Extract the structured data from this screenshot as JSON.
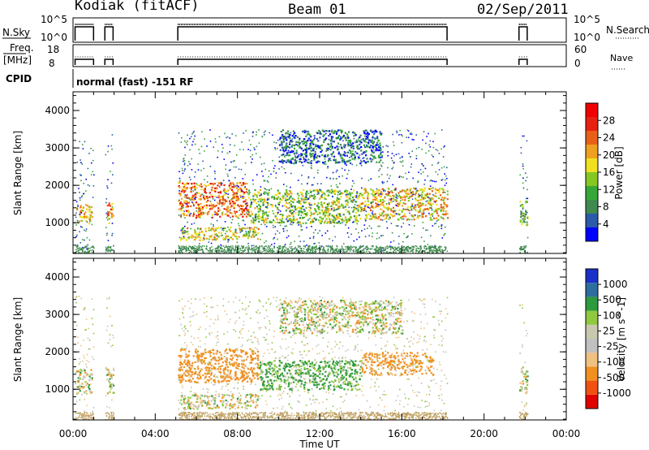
{
  "header": {
    "station": "Kodiak (fitACF)",
    "beam": "Beam 01",
    "date": "02/Sep/2011"
  },
  "top_panels": {
    "nsky_label": "N.Sky",
    "nsearch_label": "N.Search",
    "nsky_ticks": [
      "10^5",
      "10^0"
    ],
    "nsearch_ticks": [
      "10^5",
      "10^0"
    ],
    "freq_label": "Freq.",
    "freq_unit": "[MHz]",
    "freq_ticks": [
      "18",
      "8"
    ],
    "nave_label": "Nave",
    "nave_ticks": [
      "60",
      "0"
    ],
    "cpid_label": "CPID",
    "cpid_text": "normal (fast) -151 RF"
  },
  "colors": {
    "power": [
      "#0000ff",
      "#2a5aa8",
      "#3f8a4e",
      "#35a838",
      "#86c822",
      "#f0e020",
      "#f0a020",
      "#e86018",
      "#e82010",
      "#f00000"
    ],
    "velocity": [
      "#e00000",
      "#f05010",
      "#f09020",
      "#f0c080",
      "#c0c0c0",
      "#c8c8b0",
      "#90c840",
      "#2e9a3e",
      "#2e6e9e",
      "#1a30c8"
    ]
  },
  "chart_data": [
    {
      "type": "heatmap",
      "title": "Power",
      "xlabel": "",
      "ylabel": "Slant Range [km]",
      "colorbar_label": "Power [dB]",
      "colorbar_ticks": [
        "28",
        "24",
        "20",
        "16",
        "12",
        "8",
        "4"
      ],
      "colorbar_range": [
        0,
        30
      ],
      "xlim": [
        0,
        24
      ],
      "ylim": [
        180,
        4500
      ],
      "yticks": [
        "4000",
        "3000",
        "2000",
        "1000"
      ],
      "coverage_hours": [
        [
          0.1,
          1.0
        ],
        [
          1.55,
          1.95
        ],
        [
          5.1,
          18.2
        ],
        [
          21.7,
          22.1
        ]
      ],
      "bands": [
        {
          "t": [
            0.15,
            0.9
          ],
          "r": [
            1000,
            1550
          ],
          "level": 18
        },
        {
          "t": [
            1.6,
            1.95
          ],
          "r": [
            1000,
            1550
          ],
          "level": 20
        },
        {
          "t": [
            5.1,
            8.5
          ],
          "r": [
            1150,
            2100
          ],
          "level": 22
        },
        {
          "t": [
            8.5,
            14.0
          ],
          "r": [
            1000,
            1900
          ],
          "level": 14
        },
        {
          "t": [
            14.0,
            18.2
          ],
          "r": [
            1100,
            1950
          ],
          "level": 18
        },
        {
          "t": [
            5.2,
            9.0
          ],
          "r": [
            550,
            900
          ],
          "level": 16
        },
        {
          "t": [
            10.0,
            15.0
          ],
          "r": [
            2600,
            3500
          ],
          "level": 6
        },
        {
          "t": [
            21.7,
            22.1
          ],
          "r": [
            950,
            1650
          ],
          "level": 12
        }
      ]
    },
    {
      "type": "heatmap",
      "title": "Velocity",
      "xlabel": "Time UT",
      "ylabel": "Slant Range [km]",
      "colorbar_label": "Velocity [m s^-1]",
      "colorbar_ticks": [
        "1000",
        "500",
        "100",
        "25",
        "-25",
        "-100",
        "-500",
        "-1000"
      ],
      "colorbar_range": [
        -1200,
        1200
      ],
      "xlim": [
        0,
        24
      ],
      "xticks": [
        "00:00",
        "04:00",
        "08:00",
        "12:00",
        "16:00",
        "20:00",
        "00:00"
      ],
      "ylim": [
        180,
        4500
      ],
      "yticks": [
        "4000",
        "3000",
        "2000",
        "1000"
      ],
      "bands": [
        {
          "t": [
            0.15,
            0.9
          ],
          "r": [
            900,
            1550
          ],
          "velocity": 0
        },
        {
          "t": [
            1.6,
            1.95
          ],
          "r": [
            900,
            1550
          ],
          "velocity": 0
        },
        {
          "t": [
            5.1,
            9.0
          ],
          "r": [
            1200,
            2100
          ],
          "velocity": -300
        },
        {
          "t": [
            9.0,
            14.0
          ],
          "r": [
            1000,
            1800
          ],
          "velocity": 150
        },
        {
          "t": [
            14.0,
            17.5
          ],
          "r": [
            1400,
            2000
          ],
          "velocity": -200
        },
        {
          "t": [
            5.2,
            9.0
          ],
          "r": [
            500,
            900
          ],
          "velocity": 0
        },
        {
          "t": [
            10.0,
            16.0
          ],
          "r": [
            2500,
            3400
          ],
          "velocity": 0
        },
        {
          "t": [
            21.7,
            22.1
          ],
          "r": [
            900,
            1650
          ],
          "velocity": 0
        }
      ]
    }
  ]
}
